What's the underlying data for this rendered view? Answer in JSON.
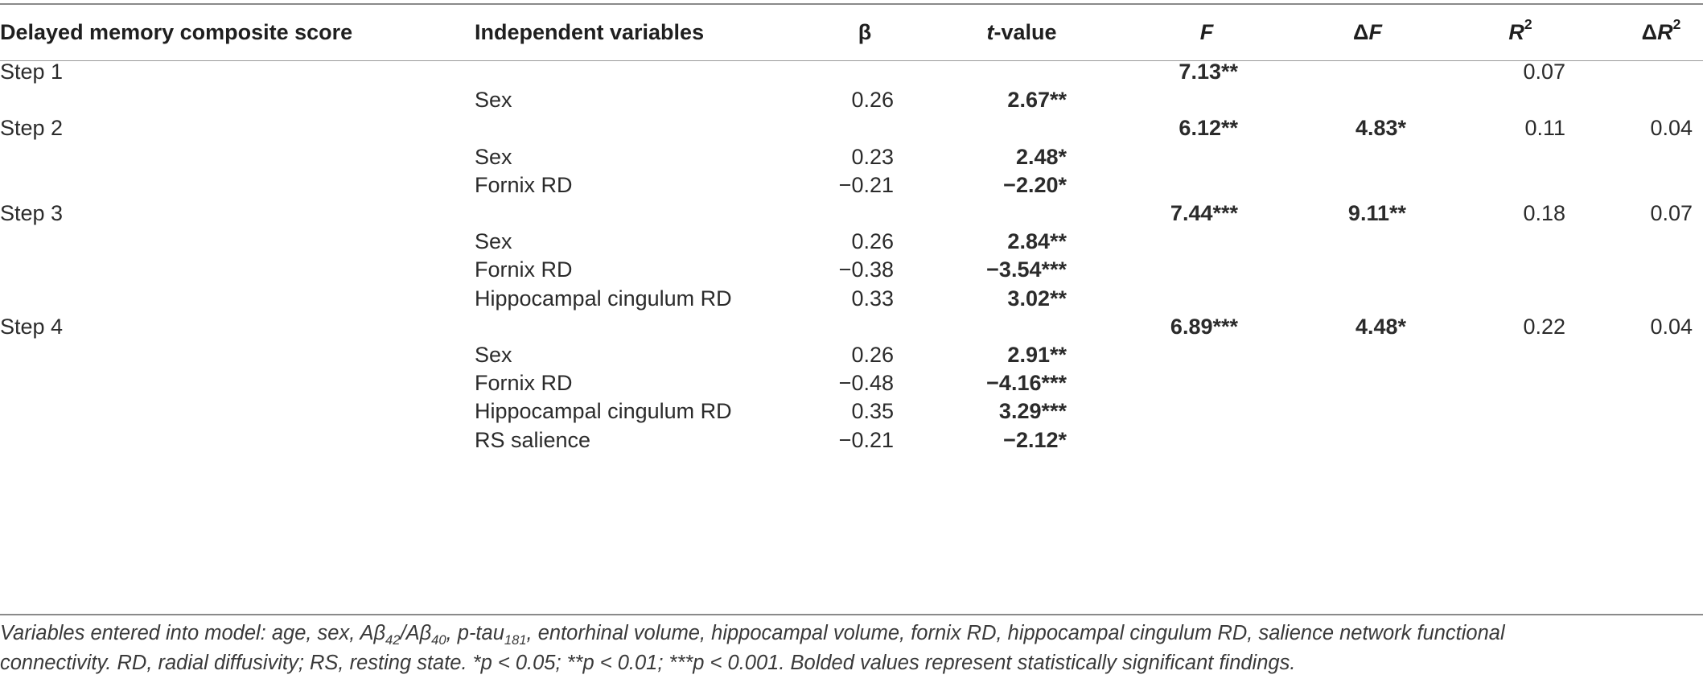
{
  "table": {
    "headers": {
      "dependent": "Delayed memory composite score",
      "independent": "Independent variables",
      "beta": "β",
      "t_value_italic": "t",
      "t_value_rest": "-value",
      "F": "F",
      "delta_F_symbol": "Δ",
      "delta_F_var": "F",
      "R2_var": "R",
      "R2_sup": "2",
      "delta_R2_symbol": "Δ",
      "delta_R2_var": "R",
      "delta_R2_sup": "2"
    },
    "steps": [
      {
        "label": "Step 1",
        "F": "7.13**",
        "delta_F": "",
        "R2": "0.07",
        "delta_R2": "",
        "rows": [
          {
            "variable": "Sex",
            "beta": "0.26",
            "t": "2.67**"
          }
        ]
      },
      {
        "label": "Step 2",
        "F": "6.12**",
        "delta_F": "4.83*",
        "R2": "0.11",
        "delta_R2": "0.04",
        "rows": [
          {
            "variable": "Sex",
            "beta": "0.23",
            "t": "2.48*"
          },
          {
            "variable": "Fornix RD",
            "beta": "−0.21",
            "t": "−2.20*"
          }
        ]
      },
      {
        "label": "Step 3",
        "F": "7.44***",
        "delta_F": "9.11**",
        "R2": "0.18",
        "delta_R2": "0.07",
        "rows": [
          {
            "variable": "Sex",
            "beta": "0.26",
            "t": "2.84**"
          },
          {
            "variable": "Fornix RD",
            "beta": "−0.38",
            "t": "−3.54***"
          },
          {
            "variable": "Hippocampal cingulum RD",
            "beta": "0.33",
            "t": "3.02**"
          }
        ]
      },
      {
        "label": "Step 4",
        "F": "6.89***",
        "delta_F": "4.48*",
        "R2": "0.22",
        "delta_R2": "0.04",
        "rows": [
          {
            "variable": "Sex",
            "beta": "0.26",
            "t": "2.91**"
          },
          {
            "variable": "Fornix RD",
            "beta": "−0.48",
            "t": "−4.16***"
          },
          {
            "variable": "Hippocampal cingulum RD",
            "beta": "0.35",
            "t": "3.29***"
          },
          {
            "variable": "RS salience",
            "beta": "−0.21",
            "t": "−2.12*"
          }
        ]
      }
    ]
  },
  "footnote": {
    "line1_a": "Variables entered into model: age, sex, Aβ",
    "line1_sub1": "42",
    "line1_b": "/Aβ",
    "line1_sub2": "40",
    "line1_c": ", p-tau",
    "line1_sub3": "181",
    "line1_d": ", entorhinal volume, hippocampal volume, fornix RD, hippocampal cingulum RD, salience network functional",
    "line2": "connectivity. RD, radial diffusivity; RS, resting state. *p < 0.05; **p < 0.01; ***p < 0.001. Bolded values represent statistically significant findings."
  }
}
